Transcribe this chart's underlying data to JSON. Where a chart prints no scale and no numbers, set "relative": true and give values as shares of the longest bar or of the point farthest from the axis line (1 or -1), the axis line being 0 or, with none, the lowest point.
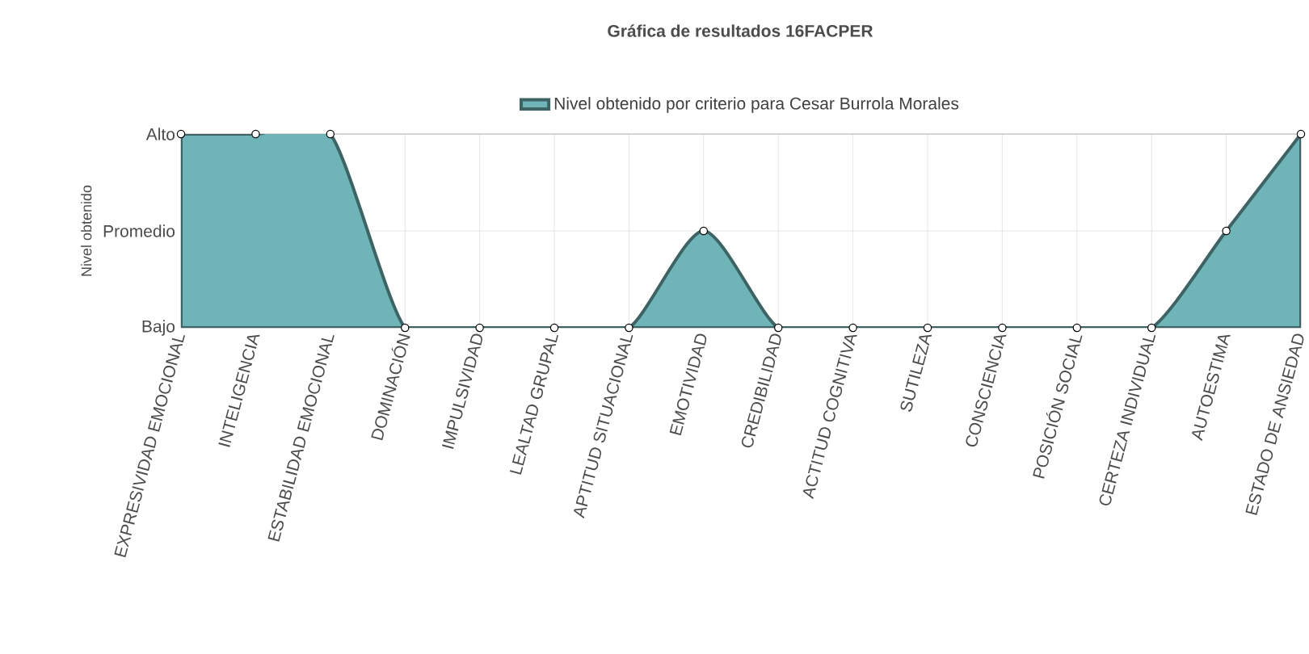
{
  "chart_data": {
    "type": "area",
    "title": "Gráfica de resultados 16FACPER",
    "ylabel": "Nivel obtenido",
    "categories": [
      "EXPRESIVIDAD EMOCIONAL",
      "INTELIGENCIA",
      "ESTABILIDAD EMOCIONAL",
      "DOMINACIÓN",
      "IMPULSIVIDAD",
      "LEALTAD GRUPAL",
      "APTITUD SITUACIONAL",
      "EMOTIVIDAD",
      "CREDIBILIDAD",
      "ACTITUD COGNITIVA",
      "SUTILEZA",
      "CONSCIENCIA",
      "POSICIÓN SOCIAL",
      "CERTEZA INDIVIDUAL",
      "AUTOESTIMA",
      "ESTADO DE ANSIEDAD"
    ],
    "series": [
      {
        "name": "Nivel obtenido por criterio para Cesar Burrola Morales",
        "color": "#6fb4b7",
        "values": [
          1,
          1,
          1,
          0,
          0,
          0,
          0,
          0.5,
          0,
          0,
          0,
          0,
          0,
          0,
          0.5,
          1
        ]
      }
    ],
    "relative": true,
    "annotations": [
      "Bajo",
      "Promedio",
      "Alto"
    ],
    "grid": true,
    "legend": "top",
    "marker": "circle"
  }
}
